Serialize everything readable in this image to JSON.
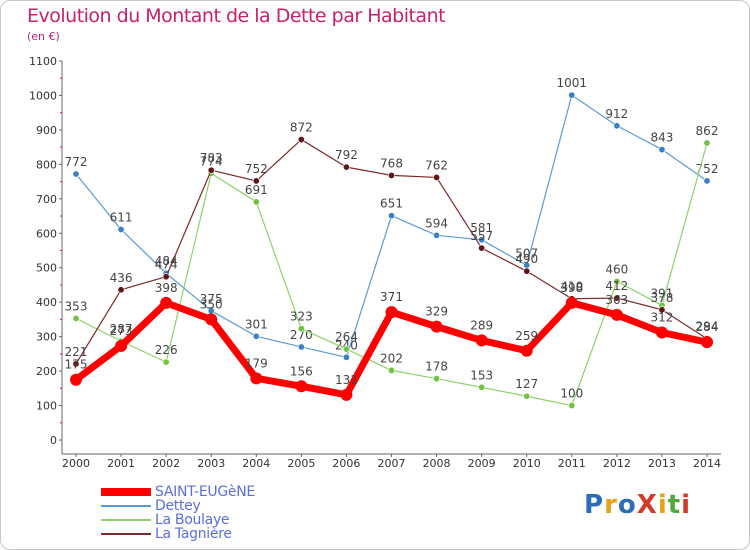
{
  "title": "Evolution du Montant de la Dette par Habitant",
  "subtitle": "(en €)",
  "logo_text": "ProXiti",
  "logo_colors": [
    "#2c6db5",
    "#e8a21a",
    "#2c6db5",
    "#d33a2a",
    "#e8a21a",
    "#55a83b",
    "#d33a2a"
  ],
  "chart_data": {
    "type": "line",
    "x": [
      "2000",
      "2001",
      "2002",
      "2003",
      "2004",
      "2005",
      "2006",
      "2007",
      "2008",
      "2009",
      "2010",
      "2011",
      "2012",
      "2013",
      "2014"
    ],
    "ylim": [
      0,
      1100
    ],
    "yticks": [
      0,
      100,
      200,
      300,
      400,
      500,
      600,
      700,
      800,
      900,
      1000,
      1100
    ],
    "grid": false,
    "legend_position": "bottom-left",
    "series": [
      {
        "name": "Dettey",
        "color": "#5b9bd5",
        "dot": "#3b82c4",
        "width": 1.2,
        "values": [
          772,
          611,
          484,
          375,
          301,
          270,
          240,
          651,
          594,
          581,
          507,
          1001,
          912,
          843,
          752
        ],
        "labels": [
          "772",
          "611",
          "484",
          "375",
          "301",
          "270",
          "240",
          "651",
          "594",
          "581",
          "507",
          "1001",
          "912",
          "843",
          "752"
        ]
      },
      {
        "name": "La Boulaye",
        "color": "#8fd16a",
        "dot": "#72c243",
        "width": 1.2,
        "values": [
          353,
          287,
          226,
          774,
          691,
          323,
          264,
          202,
          178,
          153,
          127,
          100,
          460,
          391,
          862
        ],
        "labels": [
          "353",
          "287",
          "226",
          "774",
          "691",
          "323",
          "264",
          "202",
          "178",
          "153",
          "127",
          "100",
          "460",
          "391",
          "862"
        ]
      },
      {
        "name": "La Tagnière",
        "color": "#7a2a2a",
        "dot": "#5e1717",
        "width": 1.2,
        "values": [
          221,
          436,
          474,
          783,
          752,
          872,
          792,
          768,
          762,
          557,
          490,
          410,
          412,
          378,
          294
        ],
        "labels": [
          "221",
          "436",
          "474",
          "783",
          "752",
          "872",
          "792",
          "768",
          "762",
          "557",
          "490",
          "410",
          "412",
          "378",
          "294"
        ]
      },
      {
        "name": "SAINT-EUGèNE",
        "color": "#ff0000",
        "dot": "#ff0000",
        "width": 7,
        "values": [
          175,
          273,
          398,
          350,
          179,
          156,
          131,
          371,
          329,
          289,
          259,
          398,
          363,
          312,
          284
        ],
        "labels": [
          "175",
          "273",
          "398",
          "350",
          "179",
          "156",
          "131",
          "371",
          "329",
          "289",
          "259",
          "398",
          "363",
          "312",
          "284"
        ]
      }
    ],
    "legend": [
      {
        "name": "SAINT-EUGèNE",
        "color": "#ff0000",
        "width": 8
      },
      {
        "name": "Dettey",
        "color": "#5b9bd5",
        "width": 1.5
      },
      {
        "name": "La Boulaye",
        "color": "#8fd16a",
        "width": 1.5
      },
      {
        "name": "La Tagnière",
        "color": "#7a2a2a",
        "width": 1.5
      }
    ]
  }
}
